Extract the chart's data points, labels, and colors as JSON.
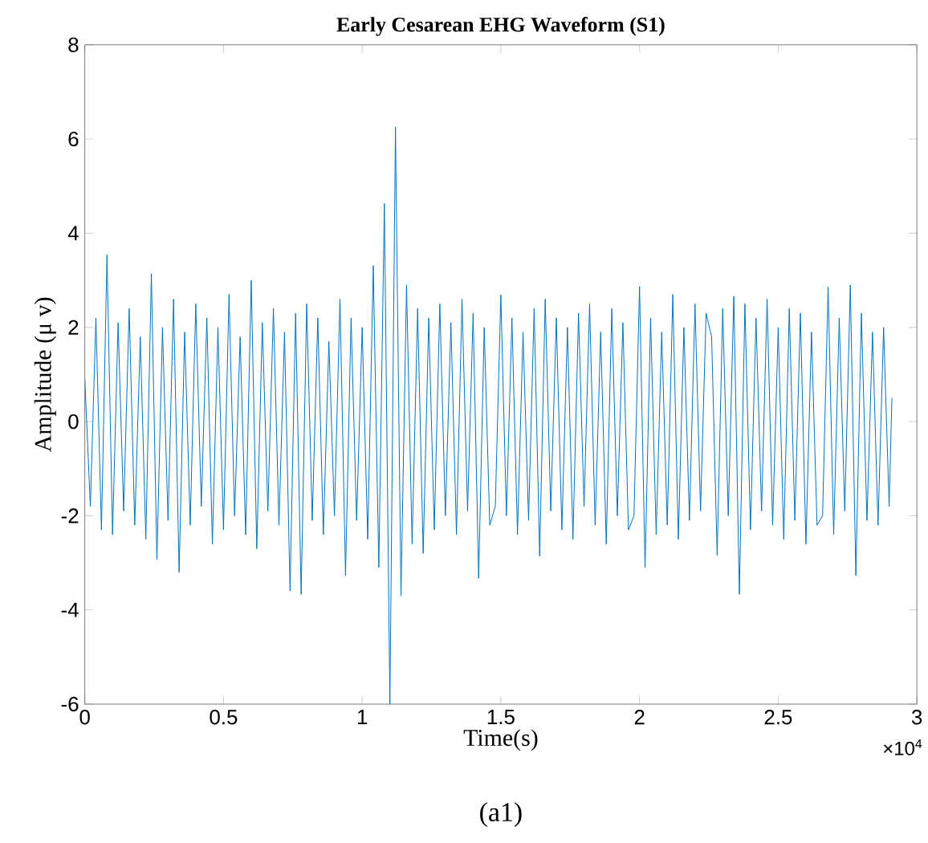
{
  "chart_data": {
    "type": "line",
    "title": "Early Cesarean EHG Waveform (S1)",
    "xlabel": "Time(s)",
    "ylabel": "Amplitude (μ v)",
    "annotations": [
      "×10$^{4}$",
      "(a1)"
    ],
    "color": "#0072bd",
    "xlim": [
      0,
      3
    ],
    "ylim": [
      -6,
      8
    ],
    "xticks": [
      0,
      0.5,
      1,
      1.5,
      2,
      2.5,
      3
    ],
    "yticks": [
      -6,
      -4,
      -2,
      0,
      2,
      4,
      6,
      8
    ],
    "x": [
      0,
      0.02,
      0.04,
      0.06,
      0.08,
      0.1,
      0.12,
      0.14,
      0.16,
      0.18,
      0.2,
      0.22,
      0.24,
      0.26,
      0.28,
      0.3,
      0.32,
      0.34,
      0.36,
      0.38,
      0.4,
      0.42,
      0.44,
      0.46,
      0.48,
      0.5,
      0.52,
      0.54,
      0.56,
      0.58,
      0.6,
      0.62,
      0.64,
      0.66,
      0.68,
      0.7,
      0.72,
      0.74,
      0.76,
      0.78,
      0.8,
      0.82,
      0.84,
      0.86,
      0.88,
      0.9,
      0.92,
      0.94,
      0.96,
      0.98,
      1,
      1.02,
      1.04,
      1.06,
      1.08,
      1.1,
      1.12,
      1.14,
      1.16,
      1.18,
      1.2,
      1.22,
      1.24,
      1.26,
      1.28,
      1.3,
      1.32,
      1.34,
      1.36,
      1.38,
      1.4,
      1.42,
      1.44,
      1.46,
      1.48,
      1.5,
      1.52,
      1.54,
      1.56,
      1.58,
      1.6,
      1.62,
      1.64,
      1.66,
      1.68,
      1.7,
      1.72,
      1.74,
      1.76,
      1.78,
      1.8,
      1.82,
      1.84,
      1.86,
      1.88,
      1.9,
      1.92,
      1.94,
      1.96,
      1.98,
      2,
      2.02,
      2.04,
      2.06,
      2.08,
      2.1,
      2.12,
      2.14,
      2.16,
      2.18,
      2.2,
      2.22,
      2.24,
      2.26,
      2.28,
      2.3,
      2.32,
      2.34,
      2.36,
      2.38,
      2.4,
      2.42,
      2.44,
      2.46,
      2.48,
      2.5,
      2.52,
      2.54,
      2.56,
      2.58,
      2.6,
      2.62,
      2.64,
      2.66,
      2.68,
      2.7,
      2.72,
      2.74,
      2.76,
      2.78,
      2.8,
      2.82,
      2.84,
      2.86,
      2.88,
      2.9,
      2.91
    ],
    "values": [
      0.9,
      -1.8,
      2.2,
      -2.3,
      3.54,
      -2.4,
      2.1,
      -1.9,
      2.4,
      -2.2,
      1.8,
      -2.5,
      3.14,
      -2.93,
      2.0,
      -2.1,
      2.6,
      -3.2,
      1.9,
      -2.2,
      2.5,
      -1.8,
      2.2,
      -2.6,
      2.0,
      -2.3,
      2.7,
      -2.0,
      1.8,
      -2.4,
      3.0,
      -2.7,
      2.1,
      -1.9,
      2.4,
      -2.2,
      1.9,
      -3.6,
      2.3,
      -3.67,
      2.5,
      -2.1,
      2.2,
      -2.4,
      1.7,
      -2.0,
      2.6,
      -3.27,
      2.2,
      -2.1,
      2.0,
      -2.5,
      3.31,
      -3.1,
      4.63,
      -6.0,
      6.26,
      -3.7,
      2.9,
      -2.6,
      2.4,
      -2.8,
      2.2,
      -2.3,
      2.5,
      -2.0,
      2.1,
      -2.4,
      2.6,
      -1.9,
      2.3,
      -3.33,
      2.0,
      -2.2,
      -1.8,
      2.69,
      -2.0,
      2.2,
      -2.4,
      1.9,
      -2.1,
      2.4,
      -2.86,
      2.6,
      -1.9,
      2.2,
      -2.3,
      2.0,
      -2.5,
      2.3,
      -1.8,
      2.5,
      -2.2,
      1.9,
      -2.6,
      2.4,
      -2.0,
      2.1,
      -2.3,
      -2.0,
      2.87,
      -3.1,
      2.2,
      -2.4,
      1.9,
      -2.2,
      2.7,
      -2.5,
      2.0,
      -2.1,
      2.5,
      -1.9,
      2.3,
      1.8,
      -2.84,
      2.4,
      -2.0,
      2.66,
      -3.67,
      2.5,
      -2.3,
      2.2,
      -1.9,
      2.6,
      -2.2,
      2.0,
      -2.5,
      2.4,
      -2.1,
      2.3,
      -2.6,
      1.9,
      -2.2,
      -2.0,
      2.86,
      -2.4,
      2.2,
      -1.9,
      2.9,
      -3.27,
      2.3,
      -2.1,
      1.9,
      -2.2,
      2.0,
      -1.8,
      0.5
    ]
  }
}
